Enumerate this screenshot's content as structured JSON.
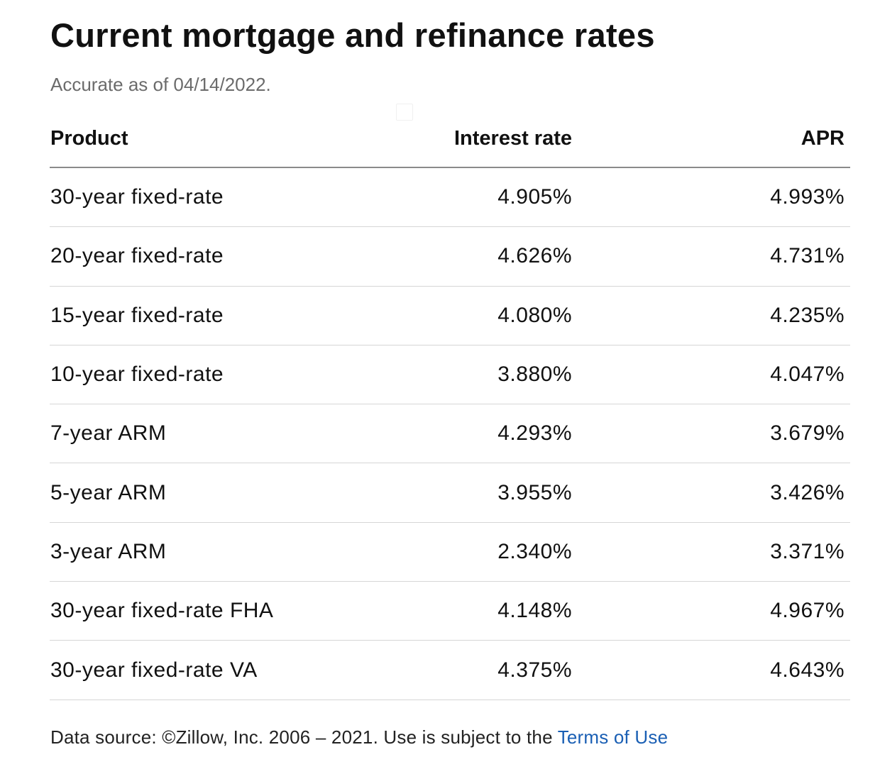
{
  "page": {
    "title": "Current mortgage and refinance rates",
    "subtitle": "Accurate as of 04/14/2022."
  },
  "table": {
    "headers": {
      "product": "Product",
      "interest_rate": "Interest rate",
      "apr": "APR"
    },
    "rows": [
      {
        "product": "30-year fixed-rate",
        "rate": "4.905%",
        "apr": "4.993%"
      },
      {
        "product": "20-year fixed-rate",
        "rate": "4.626%",
        "apr": "4.731%"
      },
      {
        "product": "15-year fixed-rate",
        "rate": "4.080%",
        "apr": "4.235%"
      },
      {
        "product": "10-year fixed-rate",
        "rate": "3.880%",
        "apr": "4.047%"
      },
      {
        "product": "7-year ARM",
        "rate": "4.293%",
        "apr": "3.679%"
      },
      {
        "product": "5-year ARM",
        "rate": "3.955%",
        "apr": "3.426%"
      },
      {
        "product": "3-year ARM",
        "rate": "2.340%",
        "apr": "3.371%"
      },
      {
        "product": "30-year fixed-rate FHA",
        "rate": "4.148%",
        "apr": "4.967%"
      },
      {
        "product": "30-year fixed-rate VA",
        "rate": "4.375%",
        "apr": "4.643%"
      }
    ]
  },
  "footer": {
    "source_text": "Data source: ©Zillow, Inc. 2006 – 2021. Use is subject to the ",
    "terms_link": "Terms of Use"
  },
  "colors": {
    "text": "#111111",
    "muted": "#6b6b6b",
    "link": "#1a5fb4",
    "divider": "#d6d6d6"
  }
}
